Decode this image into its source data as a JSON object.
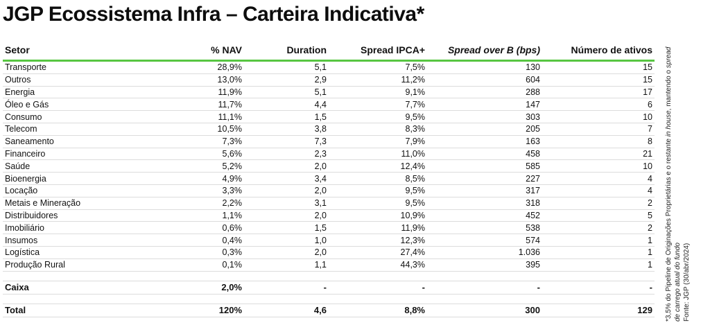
{
  "title": "JGP Ecossistema Infra – Carteira Indicativa*",
  "table": {
    "headers": [
      "Setor",
      "% NAV",
      "Duration",
      "Spread IPCA+",
      "Spread over B (bps)",
      "Número de ativos"
    ],
    "rows": [
      [
        "Transporte",
        "28,9%",
        "5,1",
        "7,5%",
        "130",
        "15"
      ],
      [
        "Outros",
        "13,0%",
        "2,9",
        "11,2%",
        "604",
        "15"
      ],
      [
        "Energia",
        "11,9%",
        "5,1",
        "9,1%",
        "288",
        "17"
      ],
      [
        "Óleo e Gás",
        "11,7%",
        "4,4",
        "7,7%",
        "147",
        "6"
      ],
      [
        "Consumo",
        "11,1%",
        "1,5",
        "9,5%",
        "303",
        "10"
      ],
      [
        "Telecom",
        "10,5%",
        "3,8",
        "8,3%",
        "205",
        "7"
      ],
      [
        "Saneamento",
        "7,3%",
        "7,3",
        "7,9%",
        "163",
        "8"
      ],
      [
        "Financeiro",
        "5,6%",
        "2,3",
        "11,0%",
        "458",
        "21"
      ],
      [
        "Saúde",
        "5,2%",
        "2,0",
        "12,4%",
        "585",
        "10"
      ],
      [
        "Bioenergia",
        "4,9%",
        "3,4",
        "8,5%",
        "227",
        "4"
      ],
      [
        "Locação",
        "3,3%",
        "2,0",
        "9,5%",
        "317",
        "4"
      ],
      [
        "Metais e Mineração",
        "2,2%",
        "3,1",
        "9,5%",
        "318",
        "2"
      ],
      [
        "Distribuidores",
        "1,1%",
        "2,0",
        "10,9%",
        "452",
        "5"
      ],
      [
        "Imobiliário",
        "0,6%",
        "1,5",
        "11,9%",
        "538",
        "2"
      ],
      [
        "Insumos",
        "0,4%",
        "1,0",
        "12,3%",
        "574",
        "1"
      ],
      [
        "Logística",
        "0,3%",
        "2,0",
        "27,4%",
        "1.036",
        "1"
      ],
      [
        "Produção Rural",
        "0,1%",
        "1,1",
        "44,3%",
        "395",
        "1"
      ]
    ],
    "caixa": [
      "Caixa",
      "2,0%",
      "-",
      "-",
      "-",
      "-"
    ],
    "total": [
      "Total",
      "120%",
      "4,6",
      "8,8%",
      "300",
      "129"
    ]
  },
  "note": {
    "line1_a": "*3,5% do Pipeline de Originações Proprietárias e o restante ",
    "line1_b": "in house",
    "line1_c": ", mantendo o ",
    "line1_d": "spread",
    "line2": "de carrego atual do fundo",
    "source": "Fonte: JGP (30/abr/2024)"
  }
}
